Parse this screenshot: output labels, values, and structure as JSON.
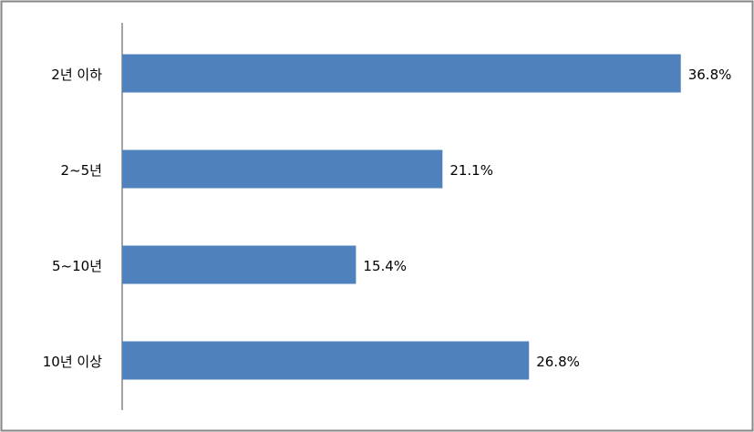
{
  "chart_data": {
    "type": "bar",
    "orientation": "horizontal",
    "categories": [
      "2년 이하",
      "2~5년",
      "5~10년",
      "10년 이상"
    ],
    "values": [
      36.8,
      21.1,
      15.4,
      26.8
    ],
    "value_labels": [
      "36.8%",
      "21.1%",
      "15.4%",
      "26.8%"
    ],
    "color": "#4f81bd",
    "xlim": [
      0,
      40
    ]
  }
}
